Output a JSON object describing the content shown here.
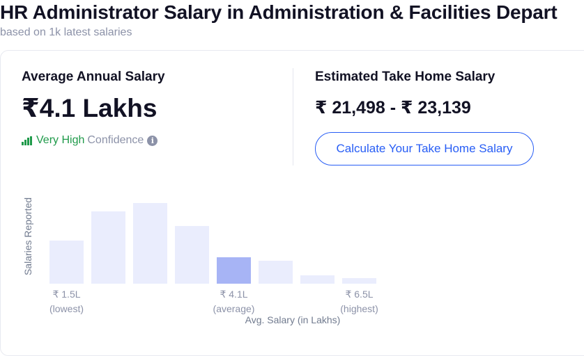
{
  "header": {
    "title": "HR Administrator Salary in Administration & Facilities Depart",
    "subtitle": "based on 1k latest salaries"
  },
  "average": {
    "label": "Average Annual Salary",
    "value": "₹4.1 Lakhs",
    "confidence_level": "Very High",
    "confidence_word": "Confidence",
    "info_icon": "info-icon"
  },
  "take_home": {
    "label": "Estimated Take Home Salary",
    "value": "₹ 21,498 - ₹ 23,139",
    "button_label": "Calculate Your Take Home Salary"
  },
  "colors": {
    "accent": "#275df5",
    "confidence_green": "#1f9a4a",
    "bar": "#eaedfd",
    "bar_highlight": "#a7b4f5"
  },
  "chart_data": {
    "type": "bar",
    "ylabel": "Salaries Reported",
    "xlabel": "Avg. Salary (in Lakhs)",
    "values": [
      62,
      104,
      116,
      83,
      38,
      33,
      12,
      8
    ],
    "highlight_index": 4,
    "grid": false,
    "tick_labels": [
      {
        "index": 0,
        "value": "₹ 1.5L",
        "note": "(lowest)"
      },
      {
        "index": 4,
        "value": "₹ 4.1L",
        "note": "(average)"
      },
      {
        "index": 7,
        "value": "₹ 6.5L",
        "note": "(highest)"
      }
    ]
  }
}
